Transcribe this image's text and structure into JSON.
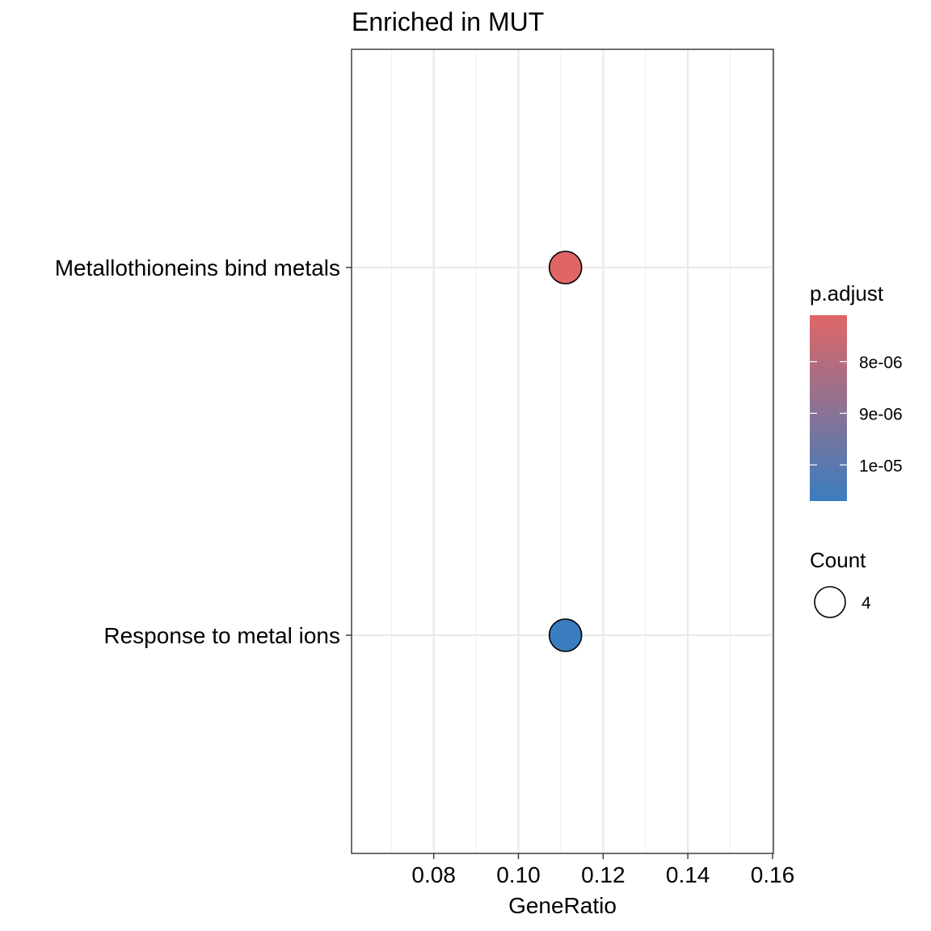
{
  "chart_data": {
    "type": "scatter",
    "title": "Enriched in MUT",
    "xlabel": "GeneRatio",
    "ylabel": "",
    "xlim": [
      0.0606,
      0.1602
    ],
    "x_ticks": [
      {
        "value": 0.08,
        "label": "0.08"
      },
      {
        "value": 0.1,
        "label": "0.10"
      },
      {
        "value": 0.12,
        "label": "0.12"
      },
      {
        "value": 0.14,
        "label": "0.14"
      },
      {
        "value": 0.16,
        "label": "0.16"
      }
    ],
    "x_minor_ticks": [
      0.07,
      0.09,
      0.11,
      0.13,
      0.15
    ],
    "categories": [
      "Metallothioneins bind metals",
      "Response to metal ions"
    ],
    "points": [
      {
        "category": "Metallothioneins bind metals",
        "x": 0.1111,
        "count": 4,
        "p_adjust": 7.3e-06,
        "color": "#e06666"
      },
      {
        "category": "Response to metal ions",
        "x": 0.1111,
        "count": 4,
        "p_adjust": 1.07e-05,
        "color": "#3a7dbf"
      }
    ],
    "color_legend": {
      "title": "p.adjust",
      "ticks": [
        {
          "value": 8e-06,
          "label": "8e-06"
        },
        {
          "value": 9e-06,
          "label": "9e-06"
        },
        {
          "value": 1e-05,
          "label": "1e-05"
        }
      ],
      "range": [
        7.1e-06,
        1.07e-05
      ],
      "color_low_p": "#e06666",
      "color_high_p": "#3a7dbf"
    },
    "size_legend": {
      "title": "Count",
      "entries": [
        {
          "value": 4,
          "label": "4"
        }
      ]
    },
    "grid": true,
    "legend_position": "right"
  }
}
